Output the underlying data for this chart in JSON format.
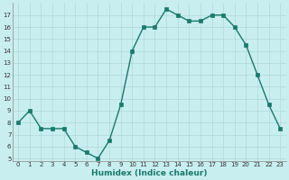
{
  "x": [
    0,
    1,
    2,
    3,
    4,
    5,
    6,
    7,
    8,
    9,
    10,
    11,
    12,
    13,
    14,
    15,
    16,
    17,
    18,
    19,
    20,
    21,
    22,
    23
  ],
  "y": [
    8.0,
    9.0,
    7.5,
    7.5,
    7.5,
    6.0,
    5.5,
    5.0,
    6.5,
    9.5,
    14.0,
    16.0,
    16.0,
    17.5,
    17.0,
    16.5,
    16.5,
    17.0,
    17.0,
    16.0,
    14.5,
    12.0,
    9.5,
    7.5
  ],
  "line_color": "#1a7a6a",
  "marker_color": "#1a7a6a",
  "bg_color": "#c8eef0",
  "grid_color": "#b0d8da",
  "xlabel": "Humidex (Indice chaleur)",
  "ylim_min": 4.8,
  "ylim_max": 18.0,
  "xlim_min": -0.5,
  "xlim_max": 23.5,
  "yticks": [
    5,
    6,
    7,
    8,
    9,
    10,
    11,
    12,
    13,
    14,
    15,
    16,
    17
  ],
  "xticks": [
    0,
    1,
    2,
    3,
    4,
    5,
    6,
    7,
    8,
    9,
    10,
    11,
    12,
    13,
    14,
    15,
    16,
    17,
    18,
    19,
    20,
    21,
    22,
    23
  ],
  "tick_fontsize": 5.0,
  "xlabel_fontsize": 6.5,
  "linewidth": 1.0,
  "markersize": 2.2
}
